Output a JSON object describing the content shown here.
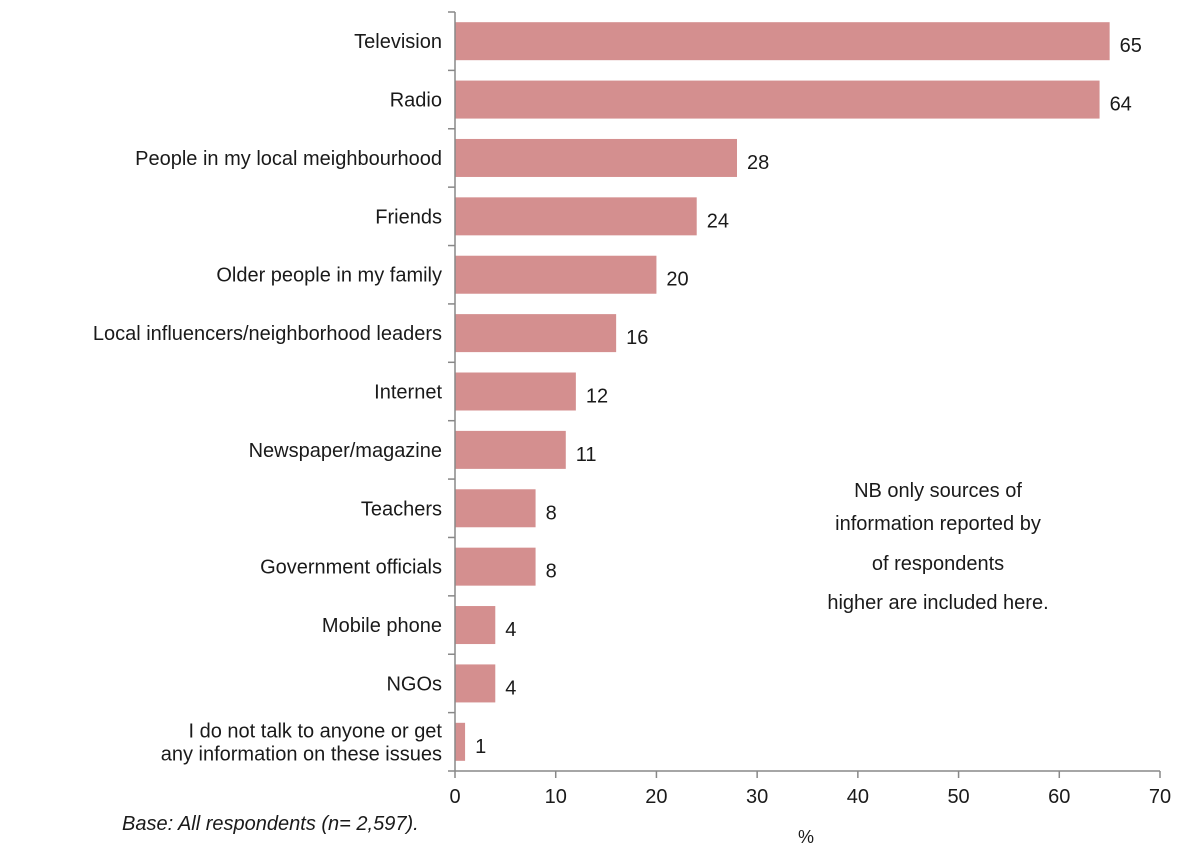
{
  "chart_data": {
    "type": "bar",
    "orientation": "horizontal",
    "categories": [
      [
        "Television"
      ],
      [
        "Radio"
      ],
      [
        "People in my local meighbourhood"
      ],
      [
        "Friends"
      ],
      [
        "Older people in my family"
      ],
      [
        "Local influencers/neighborhood leaders"
      ],
      [
        "Internet"
      ],
      [
        "Newspaper/magazine"
      ],
      [
        "Teachers"
      ],
      [
        "Government officials"
      ],
      [
        "Mobile phone"
      ],
      [
        "NGOs"
      ],
      [
        "I do not talk to anyone or get",
        "any information on these issues"
      ]
    ],
    "values": [
      65,
      64,
      28,
      24,
      20,
      16,
      12,
      11,
      8,
      8,
      4,
      4,
      1
    ],
    "value_labels": [
      "65",
      "64",
      "28",
      "24",
      "20",
      "16",
      "12",
      "11",
      "8",
      "8",
      "4",
      "4",
      "1"
    ],
    "xlabel": "%",
    "xlim": [
      0,
      70
    ],
    "xticks": [
      0,
      10,
      20,
      30,
      40,
      50,
      60,
      70
    ],
    "bar_color": "#d48f8f",
    "grid": false,
    "annotation": [
      "NB only sources of",
      "information reported by",
      "of respondents",
      "higher are included here."
    ],
    "footnote": "Base: All respondents (n= 2,597)."
  }
}
